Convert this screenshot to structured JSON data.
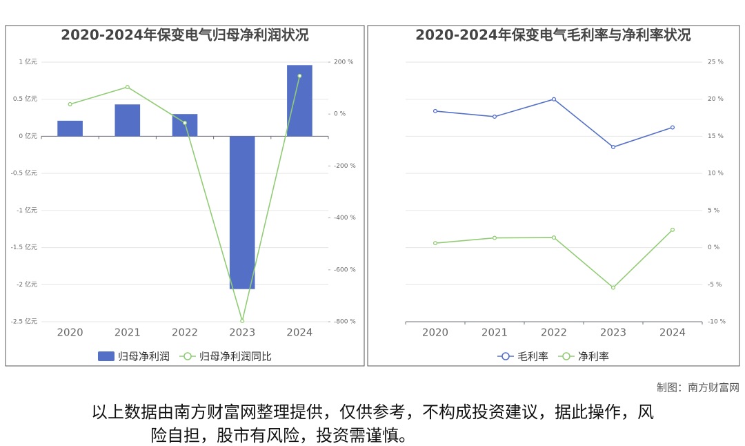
{
  "chart_data": [
    {
      "type": "bar",
      "title": "2020-2024年保变电气归母净利润状况",
      "categories": [
        "2020",
        "2021",
        "2022",
        "2023",
        "2024"
      ],
      "series": [
        {
          "name": "归母净利润",
          "type": "bar",
          "color": "#5470c6",
          "values": [
            0.21,
            0.43,
            0.3,
            -2.06,
            0.96
          ]
        },
        {
          "name": "归母净利润同比",
          "type": "line",
          "axis": "y2",
          "color": "#91cc75",
          "values": [
            38,
            104,
            -34,
            -797,
            147
          ]
        }
      ],
      "ylim": [
        -2.5,
        1
      ],
      "yticks": [
        {
          "value": 1,
          "label": "1 亿元"
        },
        {
          "value": 0.5,
          "label": "0.5 亿元"
        },
        {
          "value": 0,
          "label": "0 亿元"
        },
        {
          "value": -0.5,
          "label": "-0.5 亿元"
        },
        {
          "value": -1,
          "label": "-1 亿元"
        },
        {
          "value": -1.5,
          "label": "-1.5 亿元"
        },
        {
          "value": -2,
          "label": "-2 亿元"
        },
        {
          "value": -2.5,
          "label": "-2.5 亿元"
        }
      ],
      "y2lim": [
        -800,
        200
      ],
      "y2ticks": [
        {
          "value": 200,
          "label": "200 %"
        },
        {
          "value": 0,
          "label": "0 %"
        },
        {
          "value": -200,
          "label": "-200 %"
        },
        {
          "value": -400,
          "label": "-400 %"
        },
        {
          "value": -600,
          "label": "-600 %"
        },
        {
          "value": -800,
          "label": "-800 %"
        }
      ],
      "grid": true
    },
    {
      "type": "line",
      "title": "2020-2024年保变电气毛利率与净利率状况",
      "categories": [
        "2020",
        "2021",
        "2022",
        "2023",
        "2024"
      ],
      "series": [
        {
          "name": "毛利率",
          "type": "line",
          "color": "#5470c6",
          "values": [
            18.4,
            17.65,
            20.0,
            13.55,
            16.2
          ]
        },
        {
          "name": "净利率",
          "type": "line",
          "color": "#91cc75",
          "values": [
            0.6,
            1.3,
            1.35,
            -5.4,
            2.4
          ]
        }
      ],
      "ylim": [
        -10,
        25
      ],
      "yticks": [
        {
          "value": 25,
          "label": "25 %"
        },
        {
          "value": 20,
          "label": "20 %"
        },
        {
          "value": 15,
          "label": "15 %"
        },
        {
          "value": 10,
          "label": "10 %"
        },
        {
          "value": 5,
          "label": "5 %"
        },
        {
          "value": 0,
          "label": "0 %"
        },
        {
          "value": -5,
          "label": "-5 %"
        },
        {
          "value": -10,
          "label": "-10 %"
        }
      ],
      "yaxis_side": "right",
      "grid": true
    }
  ],
  "footer": {
    "credit": "制图：南方财富网",
    "disclaimer_lines": [
      "以上数据由南方财富网整理提供，仅供参考，不构成投资建议，据此操作，风",
      "险自担，股市有风险，投资需谨慎。"
    ]
  }
}
